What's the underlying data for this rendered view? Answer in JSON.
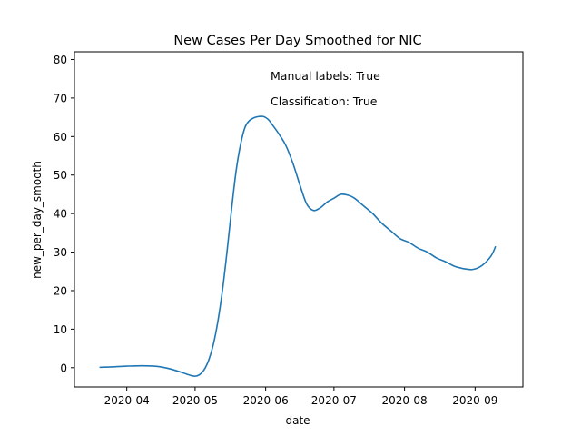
{
  "chart_data": {
    "type": "line",
    "title": "New Cases Per Day Smoothed for NIC",
    "xlabel": "date",
    "ylabel": "new_per_day_smooth",
    "ylim": [
      -5,
      82
    ],
    "xlim": [
      "2020-03-09",
      "2020-09-22"
    ],
    "x_ticks": [
      "2020-04-01",
      "2020-05-01",
      "2020-06-01",
      "2020-07-01",
      "2020-08-01",
      "2020-09-01"
    ],
    "x_tick_labels": [
      "2020-04",
      "2020-05",
      "2020-06",
      "2020-07",
      "2020-08",
      "2020-09"
    ],
    "y_ticks": [
      0,
      10,
      20,
      30,
      40,
      50,
      60,
      70,
      80
    ],
    "y_tick_labels": [
      "0",
      "10",
      "20",
      "30",
      "40",
      "50",
      "60",
      "70",
      "80"
    ],
    "grid": false,
    "annotations": [
      "Manual labels: True",
      "Classification: True"
    ],
    "line_color": "#1f77b4",
    "series": [
      {
        "x": [
          "2020-03-20",
          "2020-03-25",
          "2020-04-01",
          "2020-04-08",
          "2020-04-15",
          "2020-04-20",
          "2020-04-25",
          "2020-04-29",
          "2020-05-01",
          "2020-05-03",
          "2020-05-05",
          "2020-05-07",
          "2020-05-09",
          "2020-05-11",
          "2020-05-13",
          "2020-05-15",
          "2020-05-17",
          "2020-05-19",
          "2020-05-21",
          "2020-05-23",
          "2020-05-25",
          "2020-05-27",
          "2020-05-29",
          "2020-05-31",
          "2020-06-02",
          "2020-06-04",
          "2020-06-07",
          "2020-06-10",
          "2020-06-13",
          "2020-06-16",
          "2020-06-19",
          "2020-06-22",
          "2020-06-25",
          "2020-06-28",
          "2020-07-01",
          "2020-07-04",
          "2020-07-07",
          "2020-07-10",
          "2020-07-14",
          "2020-07-18",
          "2020-07-22",
          "2020-07-26",
          "2020-07-30",
          "2020-08-03",
          "2020-08-07",
          "2020-08-11",
          "2020-08-15",
          "2020-08-19",
          "2020-08-23",
          "2020-08-27",
          "2020-08-31",
          "2020-09-04",
          "2020-09-08",
          "2020-09-10"
        ],
        "y": [
          0.1,
          0.2,
          0.4,
          0.5,
          0.3,
          -0.3,
          -1.2,
          -2.0,
          -2.2,
          -1.8,
          -0.5,
          2.0,
          6.0,
          12.0,
          20.0,
          30.0,
          41.0,
          51.0,
          58.0,
          62.5,
          64.2,
          64.9,
          65.2,
          65.2,
          64.5,
          63.0,
          60.5,
          57.5,
          53.0,
          47.5,
          42.5,
          40.8,
          41.5,
          43.0,
          44.0,
          45.0,
          44.8,
          44.0,
          42.0,
          40.0,
          37.5,
          35.5,
          33.5,
          32.5,
          31.0,
          30.0,
          28.5,
          27.5,
          26.3,
          25.7,
          25.5,
          26.5,
          29.0,
          31.5
        ]
      }
    ]
  }
}
